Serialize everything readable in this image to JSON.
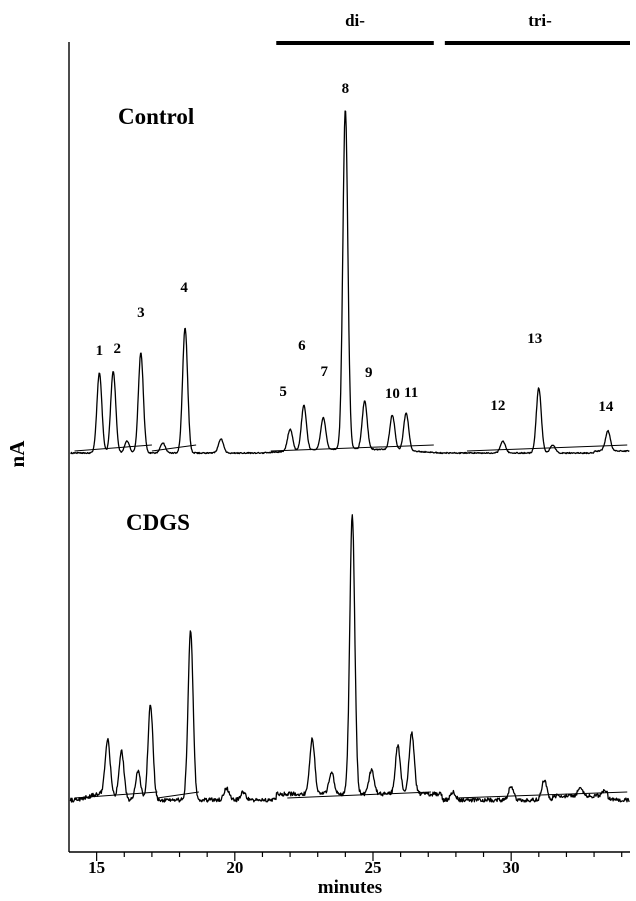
{
  "chart_data": {
    "type": "line",
    "title": "",
    "xlabel": "minutes",
    "ylabel": "nA",
    "xlim": [
      14,
      34.3
    ],
    "x_ticks": [
      15,
      20,
      25,
      30
    ],
    "grid": false,
    "legend": "none",
    "bracket_labels": [
      {
        "text": "di-",
        "x_range": [
          21.5,
          27.2
        ]
      },
      {
        "text": "tri-",
        "x_range": [
          27.6,
          34.3
        ]
      }
    ],
    "series": [
      {
        "name": "Control",
        "peaks": [
          {
            "label": "1",
            "rt": 15.1,
            "height": 80
          },
          {
            "label": "2",
            "rt": 15.6,
            "height": 82
          },
          {
            "label": "",
            "rt": 16.1,
            "height": 12
          },
          {
            "label": "3",
            "rt": 16.6,
            "height": 100
          },
          {
            "label": "",
            "rt": 17.4,
            "height": 10
          },
          {
            "label": "4",
            "rt": 18.2,
            "height": 125
          },
          {
            "label": "",
            "rt": 19.5,
            "height": 14
          },
          {
            "label": "5",
            "rt": 22.0,
            "height": 22
          },
          {
            "label": "6",
            "rt": 22.5,
            "height": 45
          },
          {
            "label": "7",
            "rt": 23.2,
            "height": 32
          },
          {
            "label": "8",
            "rt": 24.0,
            "height": 340
          },
          {
            "label": "9",
            "rt": 24.7,
            "height": 48
          },
          {
            "label": "10",
            "rt": 25.7,
            "height": 35
          },
          {
            "label": "11",
            "rt": 26.2,
            "height": 38
          },
          {
            "label": "12",
            "rt": 29.7,
            "height": 12
          },
          {
            "label": "13",
            "rt": 31.0,
            "height": 65
          },
          {
            "label": "",
            "rt": 31.5,
            "height": 8
          },
          {
            "label": "14",
            "rt": 33.5,
            "height": 20
          }
        ]
      },
      {
        "name": "CDGS",
        "peaks": [
          {
            "label": "",
            "rt": 15.4,
            "height": 55
          },
          {
            "label": "",
            "rt": 15.9,
            "height": 48
          },
          {
            "label": "",
            "rt": 16.5,
            "height": 28
          },
          {
            "label": "",
            "rt": 16.95,
            "height": 95
          },
          {
            "label": "",
            "rt": 18.4,
            "height": 170
          },
          {
            "label": "",
            "rt": 19.7,
            "height": 12
          },
          {
            "label": "",
            "rt": 20.3,
            "height": 8
          },
          {
            "label": "",
            "rt": 22.8,
            "height": 55
          },
          {
            "label": "",
            "rt": 23.5,
            "height": 22
          },
          {
            "label": "",
            "rt": 24.25,
            "height": 280
          },
          {
            "label": "",
            "rt": 24.95,
            "height": 25
          },
          {
            "label": "",
            "rt": 25.9,
            "height": 48
          },
          {
            "label": "",
            "rt": 26.4,
            "height": 62
          },
          {
            "label": "",
            "rt": 27.9,
            "height": 8
          },
          {
            "label": "",
            "rt": 30.0,
            "height": 14
          },
          {
            "label": "",
            "rt": 31.2,
            "height": 20
          },
          {
            "label": "",
            "rt": 32.5,
            "height": 8
          },
          {
            "label": "",
            "rt": 33.4,
            "height": 6
          }
        ]
      }
    ]
  }
}
